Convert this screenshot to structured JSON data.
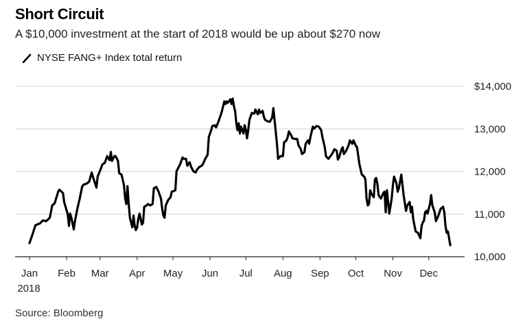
{
  "chart_data": {
    "type": "line",
    "title": "Short Circuit",
    "subtitle": "A $10,000 investment at the start of 2018 would be up about $270 now",
    "legend": [
      {
        "name": "NYSE FANG+ Index total return",
        "color": "#000000",
        "marker": "line"
      }
    ],
    "legend_position": "top-left",
    "source": "Source: Bloomberg",
    "xlabel": "",
    "ylabel": "",
    "x_unit": "day of year 2018 (0 = Jan 1)",
    "xlim": [
      0,
      364
    ],
    "ylim": [
      10000,
      14000
    ],
    "grid": true,
    "y_axis_side": "right",
    "y_ticks": [
      10000,
      11000,
      12000,
      13000,
      14000
    ],
    "y_tick_labels": [
      "10,000",
      "11,000",
      "12,000",
      "13,000",
      "$14,000"
    ],
    "x_ticks": [
      0,
      31,
      59,
      90,
      120,
      151,
      181,
      212,
      243,
      273,
      304,
      334
    ],
    "x_tick_labels": [
      "Jan",
      "Feb",
      "Mar",
      "Apr",
      "May",
      "Jun",
      "Jul",
      "Aug",
      "Sep",
      "Oct",
      "Nov",
      "Dec"
    ],
    "x_tick_sublabel": "2018",
    "series": [
      {
        "name": "NYSE FANG+ Index total return",
        "color": "#000000",
        "x": [
          0,
          2,
          5,
          9,
          11,
          14,
          17,
          19,
          21,
          24,
          25,
          28,
          29,
          32,
          33,
          34,
          35,
          37,
          38,
          40,
          42,
          44,
          45,
          48,
          50,
          52,
          53,
          56,
          57,
          60,
          61,
          63,
          65,
          67,
          68,
          69,
          71,
          72,
          74,
          75,
          77,
          79,
          80,
          81,
          82,
          83,
          84,
          86,
          87,
          88,
          89,
          90,
          91,
          92,
          94,
          95,
          96,
          98,
          99,
          101,
          103,
          104,
          106,
          108,
          110,
          111,
          112,
          113,
          114,
          116,
          118,
          119,
          122,
          123,
          126,
          128,
          129,
          131,
          132,
          134,
          135,
          137,
          139,
          140,
          142,
          144,
          145,
          147,
          149,
          150,
          152,
          153,
          155,
          156,
          158,
          160,
          161,
          163,
          164,
          165,
          166,
          168,
          169,
          170,
          171,
          172,
          173,
          174,
          175,
          176,
          177,
          179,
          180,
          181,
          182,
          183,
          184,
          186,
          188,
          189,
          191,
          192,
          193,
          195,
          196,
          197,
          199,
          201,
          203,
          204,
          205,
          207,
          208,
          210,
          212,
          213,
          215,
          216,
          217,
          219,
          220,
          222,
          224,
          225,
          227,
          228,
          230,
          231,
          233,
          234,
          235,
          237,
          238,
          240,
          242,
          244,
          245,
          247,
          248,
          250,
          251,
          253,
          254,
          255,
          257,
          258,
          259,
          261,
          262,
          263,
          265,
          267,
          268,
          270,
          271,
          273,
          274,
          276,
          278,
          280,
          281,
          282,
          283,
          284,
          285,
          286,
          288,
          289,
          290,
          291,
          292,
          294,
          296,
          297,
          298,
          299,
          300,
          301,
          303,
          304,
          305,
          307,
          308,
          309,
          311,
          313,
          315,
          316,
          318,
          319,
          320,
          321,
          323,
          325,
          327,
          328,
          329,
          330,
          331,
          332,
          333,
          334,
          335,
          336,
          337,
          338,
          339,
          340,
          342,
          343,
          344,
          346,
          347,
          348,
          349,
          350,
          352
        ],
        "values": [
          10321,
          10482,
          10739,
          10787,
          10851,
          10835,
          10916,
          11205,
          11253,
          11526,
          11574,
          11494,
          11285,
          10996,
          10723,
          11012,
          10916,
          10643,
          10835,
          11124,
          11365,
          11639,
          11687,
          11719,
          11767,
          11976,
          11880,
          11622,
          11880,
          12088,
          12169,
          12201,
          12361,
          12265,
          12458,
          12249,
          12361,
          12361,
          12249,
          11960,
          11928,
          11687,
          11365,
          11237,
          11655,
          11237,
          10916,
          10691,
          10964,
          10723,
          10627,
          10691,
          10884,
          11012,
          10755,
          10803,
          11173,
          11205,
          11237,
          11205,
          11237,
          11606,
          11639,
          11526,
          11365,
          11124,
          10964,
          10916,
          11205,
          11333,
          11398,
          11526,
          11558,
          12008,
          12169,
          12329,
          12297,
          12297,
          12137,
          12217,
          12120,
          12008,
          11976,
          12040,
          12104,
          12137,
          12169,
          12297,
          12394,
          12811,
          12972,
          13068,
          13084,
          13036,
          13165,
          13325,
          13422,
          13647,
          13582,
          13647,
          13614,
          13695,
          13582,
          13711,
          13534,
          13422,
          13133,
          12972,
          13133,
          12892,
          13052,
          12892,
          13084,
          12972,
          12779,
          12972,
          13213,
          13373,
          13357,
          13454,
          13341,
          13454,
          13373,
          13422,
          13293,
          13213,
          13181,
          13165,
          13261,
          13486,
          13213,
          12651,
          12297,
          12361,
          12361,
          12683,
          12731,
          12811,
          12940,
          12843,
          12779,
          12763,
          12763,
          12618,
          12522,
          12410,
          12458,
          12651,
          12731,
          12651,
          12811,
          13052,
          13004,
          13068,
          13052,
          12972,
          12811,
          12570,
          12361,
          12297,
          12329,
          12410,
          12458,
          12522,
          12490,
          12281,
          12329,
          12522,
          12570,
          12410,
          12490,
          12618,
          12731,
          12651,
          12731,
          12602,
          12570,
          12169,
          11928,
          11880,
          11815,
          11365,
          11205,
          11237,
          11558,
          11478,
          11398,
          11815,
          11847,
          11719,
          11446,
          11365,
          11494,
          11526,
          11044,
          11558,
          11285,
          11012,
          11365,
          11687,
          11880,
          11719,
          11526,
          11606,
          11928,
          11446,
          11076,
          11205,
          11285,
          11044,
          11173,
          10884,
          10594,
          10562,
          10434,
          10723,
          10803,
          10851,
          11044,
          11076,
          11012,
          11124,
          11237,
          11446,
          11205,
          11124,
          11044,
          10835,
          10964,
          11044,
          11124,
          11173,
          11044,
          10723,
          10562,
          10594,
          10270
        ]
      }
    ]
  }
}
